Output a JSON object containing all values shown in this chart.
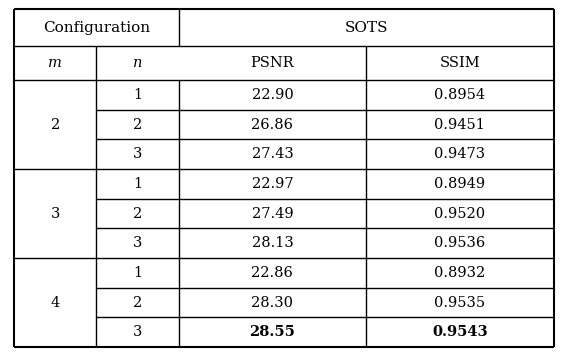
{
  "title_row1": [
    "Configuration",
    "SOTS"
  ],
  "title_row2": [
    "m",
    "n",
    "PSNR",
    "SSIM"
  ],
  "rows": [
    [
      "2",
      "1",
      "22.90",
      "0.8954",
      false,
      false
    ],
    [
      "2",
      "2",
      "26.86",
      "0.9451",
      false,
      false
    ],
    [
      "2",
      "3",
      "27.43",
      "0.9473",
      false,
      false
    ],
    [
      "3",
      "1",
      "22.97",
      "0.8949",
      false,
      false
    ],
    [
      "3",
      "2",
      "27.49",
      "0.9520",
      false,
      false
    ],
    [
      "3",
      "3",
      "28.13",
      "0.9536",
      false,
      false
    ],
    [
      "4",
      "1",
      "22.86",
      "0.8932",
      false,
      false
    ],
    [
      "4",
      "2",
      "28.30",
      "0.9535",
      false,
      false
    ],
    [
      "4",
      "3",
      "28.55",
      "0.9543",
      true,
      true
    ]
  ],
  "m_groups": [
    {
      "m": "2",
      "rows": [
        0,
        1,
        2
      ]
    },
    {
      "m": "3",
      "rows": [
        3,
        4,
        5
      ]
    },
    {
      "m": "4",
      "rows": [
        6,
        7,
        8
      ]
    }
  ],
  "background_color": "#ffffff",
  "line_color": "#000000",
  "font_size": 10.5,
  "header_font_size": 11.0
}
